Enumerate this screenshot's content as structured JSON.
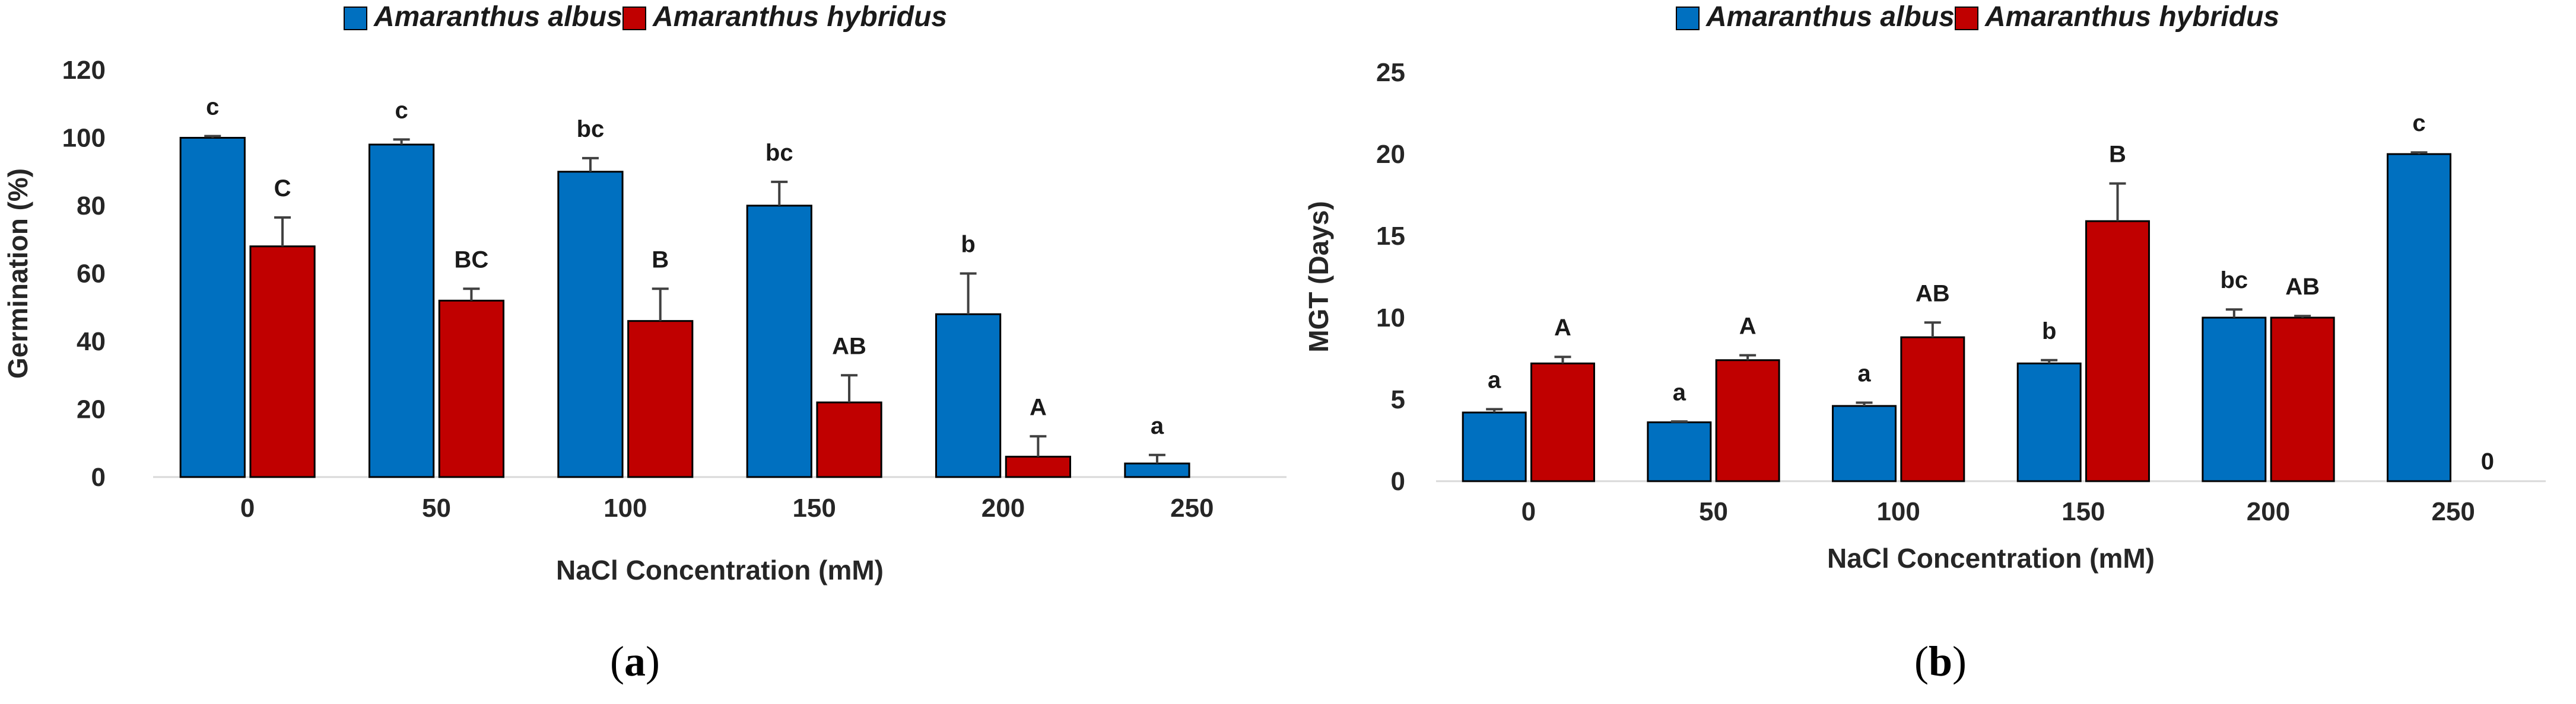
{
  "colors": {
    "albus": "#0070c0",
    "hybridus": "#c00000",
    "axis": "#d9d9d9",
    "error_bar": "#404040"
  },
  "chart_data": [
    {
      "type": "bar",
      "panel_label": "a",
      "xlabel": "NaCl Concentration (mM)",
      "ylabel": "Germination (%)",
      "ylim": [
        0,
        120
      ],
      "yticks": [
        0,
        20,
        40,
        60,
        80,
        100,
        120
      ],
      "categories": [
        "0",
        "50",
        "100",
        "150",
        "200",
        "250"
      ],
      "grid": false,
      "legend": "top",
      "series": [
        {
          "name": "Amaranthus albus",
          "color": "#0070c0",
          "values": [
            100,
            98,
            90,
            80,
            48,
            4
          ],
          "errors": [
            0.5,
            1.5,
            4,
            7,
            12,
            2.5
          ],
          "labels": [
            "c",
            "c",
            "bc",
            "bc",
            "b",
            "a"
          ]
        },
        {
          "name": "Amaranthus hybridus",
          "color": "#c00000",
          "values": [
            68,
            52,
            46,
            22,
            6,
            0
          ],
          "errors": [
            8.5,
            3.5,
            9.5,
            8,
            6,
            0
          ],
          "labels": [
            "C",
            "BC",
            "B",
            "AB",
            "A",
            ""
          ]
        }
      ]
    },
    {
      "type": "bar",
      "panel_label": "b",
      "xlabel": "NaCl Concentration (mM)",
      "ylabel": "MGT (Days)",
      "ylim": [
        0,
        25
      ],
      "yticks": [
        0,
        5,
        10,
        15,
        20,
        25
      ],
      "categories": [
        "0",
        "50",
        "100",
        "150",
        "200",
        "250"
      ],
      "grid": false,
      "legend": "top",
      "series": [
        {
          "name": "Amaranthus albus",
          "color": "#0070c0",
          "values": [
            4.2,
            3.6,
            4.6,
            7.2,
            10,
            20
          ],
          "errors": [
            0.2,
            0.05,
            0.2,
            0.2,
            0.5,
            0.1
          ],
          "labels": [
            "a",
            "a",
            "a",
            "b",
            "bc",
            "c"
          ]
        },
        {
          "name": "Amaranthus hybridus",
          "color": "#c00000",
          "values": [
            7.2,
            7.4,
            8.8,
            15.9,
            10,
            0
          ],
          "errors": [
            0.4,
            0.3,
            0.9,
            2.3,
            0.1,
            0
          ],
          "labels": [
            "A",
            "A",
            "AB",
            "B",
            "AB",
            "0"
          ]
        }
      ]
    }
  ]
}
